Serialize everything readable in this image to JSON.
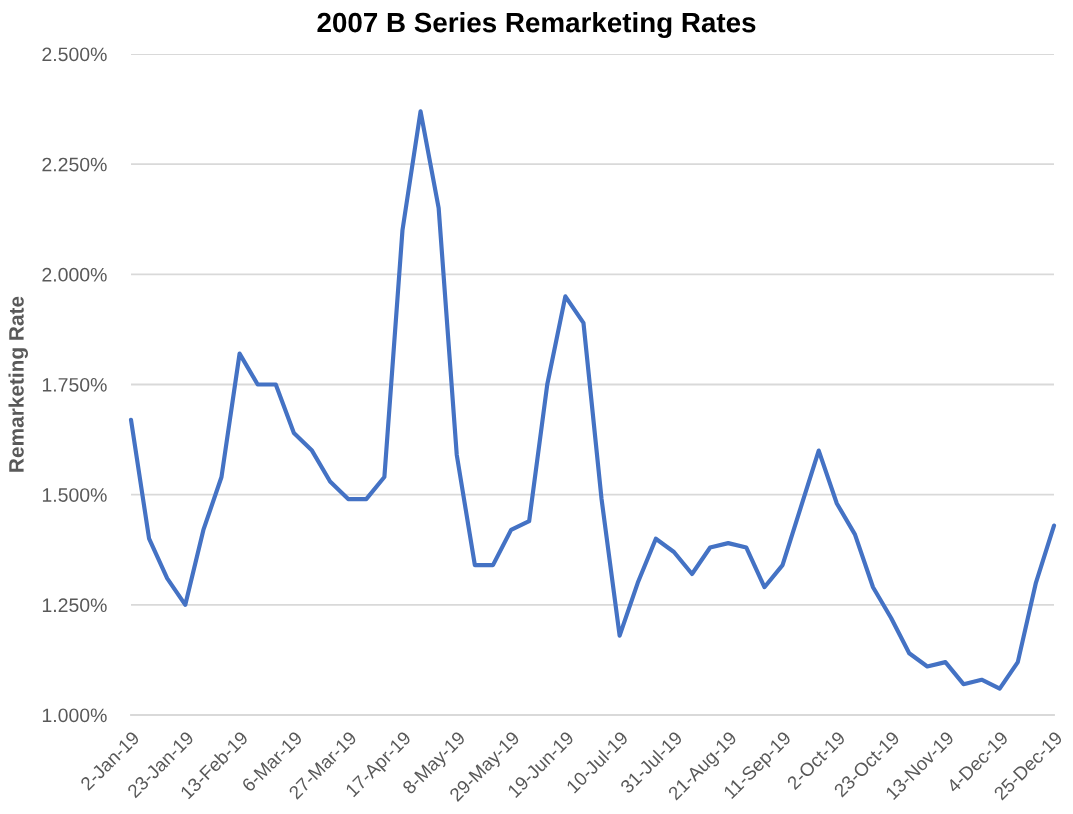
{
  "chart_data": {
    "type": "line",
    "title": "2007 B Series Remarketing Rates",
    "ylabel": "Remarketing Rate",
    "categories": [
      "2-Jan-19",
      null,
      null,
      "23-Jan-19",
      null,
      null,
      "13-Feb-19",
      null,
      null,
      "6-Mar-19",
      null,
      null,
      "27-Mar-19",
      null,
      null,
      "17-Apr-19",
      null,
      null,
      "8-May-19",
      null,
      null,
      "29-May-19",
      null,
      null,
      "19-Jun-19",
      null,
      null,
      "10-Jul-19",
      null,
      null,
      "31-Jul-19",
      null,
      null,
      "21-Aug-19",
      null,
      null,
      "11-Sep-19",
      null,
      null,
      "2-Oct-19",
      null,
      null,
      "23-Oct-19",
      null,
      null,
      "13-Nov-19",
      null,
      null,
      "4-Dec-19",
      null,
      null,
      "25-Dec-19"
    ],
    "series": [
      {
        "color": "#4472c4",
        "values": [
          1.67,
          1.4,
          1.31,
          1.25,
          1.42,
          1.54,
          1.82,
          1.75,
          1.75,
          1.64,
          1.6,
          1.53,
          1.49,
          1.49,
          1.54,
          2.1,
          2.37,
          2.15,
          1.59,
          1.34,
          1.34,
          1.42,
          1.44,
          1.75,
          1.95,
          1.89,
          1.49,
          1.18,
          1.3,
          1.4,
          1.37,
          1.32,
          1.38,
          1.39,
          1.38,
          1.29,
          1.34,
          1.47,
          1.6,
          1.48,
          1.41,
          1.29,
          1.22,
          1.14,
          1.11,
          1.12,
          1.07,
          1.08,
          1.06,
          1.12,
          1.3,
          1.43
        ]
      }
    ],
    "ylim": [
      1.0,
      2.5
    ],
    "yticks": [
      {
        "value": 1.0,
        "label": "1.000%"
      },
      {
        "value": 1.25,
        "label": "1.250%"
      },
      {
        "value": 1.5,
        "label": "1.500%"
      },
      {
        "value": 1.75,
        "label": "1.750%"
      },
      {
        "value": 2.0,
        "label": "2.000%"
      },
      {
        "value": 2.25,
        "label": "2.250%"
      },
      {
        "value": 2.5,
        "label": "2.500%"
      }
    ],
    "grid": "y",
    "line_style": "solid"
  }
}
